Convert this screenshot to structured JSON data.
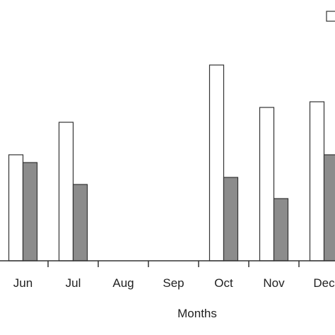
{
  "chart_data": {
    "type": "bar",
    "categories": [
      "Jun",
      "Jul",
      "Aug",
      "Sep",
      "Oct",
      "Nov",
      "Dec"
    ],
    "series": [
      {
        "values": [
          150,
          196,
          null,
          null,
          277,
          217,
          225
        ],
        "color": "#ffffff"
      },
      {
        "values": [
          139,
          108,
          null,
          null,
          118,
          88,
          150
        ],
        "color": "#8c8c8c"
      }
    ],
    "xlabel": "Months",
    "ylim": [
      0,
      300
    ],
    "grid": false,
    "legend": "top-right"
  }
}
